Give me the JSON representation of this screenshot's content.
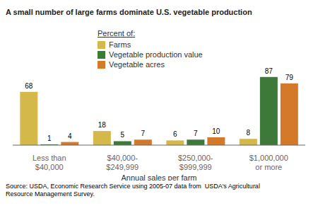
{
  "chart_data": {
    "type": "bar",
    "title": "A small number of large farms dominate U.S. vegetable production",
    "categories": [
      "Less than\n$40,000",
      "$40,000-\n$249,999",
      "$250,000-\n$999,999",
      "$1,000,000\nor more"
    ],
    "series": [
      {
        "name": "Farms",
        "color": "#D4B84A",
        "values": [
          68,
          18,
          6,
          8
        ]
      },
      {
        "name": "Vegetable production value",
        "color": "#3D7A3A",
        "values": [
          1,
          5,
          7,
          87
        ]
      },
      {
        "name": "Vegetable acres",
        "color": "#D4782A",
        "values": [
          4,
          7,
          10,
          79
        ]
      }
    ],
    "xlabel": "Annual sales per farm",
    "ylim": [
      0,
      95
    ],
    "data_labels": true,
    "tick_labels": "x",
    "grid": false,
    "legend": "upper center",
    "annotations": [
      "Percent of:",
      "Source: USDA, Economic Research Service using 2005-07 data from  USDA's Agricultural\nResource Management Survey."
    ]
  }
}
